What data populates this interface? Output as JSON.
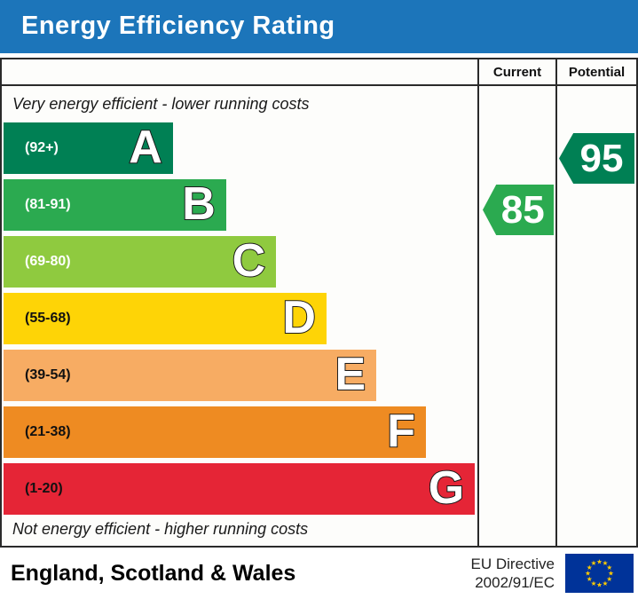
{
  "title": "Energy Efficiency Rating",
  "columns": {
    "current": "Current",
    "potential": "Potential"
  },
  "captions": {
    "top": "Very energy efficient - lower running costs",
    "bottom": "Not energy efficient - higher running costs"
  },
  "chart_data": {
    "type": "bar",
    "title": "Energy Efficiency Rating",
    "bands": [
      {
        "letter": "A",
        "range": "(92+)",
        "min": 92,
        "max": 100,
        "color": "#008054",
        "label_color": "#ffffff",
        "width_pct": 35.6
      },
      {
        "letter": "B",
        "range": "(81-91)",
        "min": 81,
        "max": 91,
        "color": "#2baa50",
        "label_color": "#ffffff",
        "width_pct": 46.8
      },
      {
        "letter": "C",
        "range": "(69-80)",
        "min": 69,
        "max": 80,
        "color": "#8fca3f",
        "label_color": "#ffffff",
        "width_pct": 57.3
      },
      {
        "letter": "D",
        "range": "(55-68)",
        "min": 55,
        "max": 68,
        "color": "#fed406",
        "label_color": "#111111",
        "width_pct": 67.9
      },
      {
        "letter": "E",
        "range": "(39-54)",
        "min": 39,
        "max": 54,
        "color": "#f7ac63",
        "label_color": "#111111",
        "width_pct": 78.4
      },
      {
        "letter": "F",
        "range": "(21-38)",
        "min": 21,
        "max": 38,
        "color": "#ee8b22",
        "label_color": "#111111",
        "width_pct": 88.8
      },
      {
        "letter": "G",
        "range": "(1-20)",
        "min": 1,
        "max": 20,
        "color": "#e52536",
        "label_color": "#111111",
        "width_pct": 99.1
      }
    ],
    "current": {
      "value": 85,
      "band": "B",
      "color": "#2baa50"
    },
    "potential": {
      "value": 95,
      "band": "A",
      "color": "#008054"
    }
  },
  "footer": {
    "region": "England, Scotland & Wales",
    "directive_line1": "EU Directive",
    "directive_line2": "2002/91/EC",
    "eu_flag": {
      "background": "#003399",
      "star_color": "#ffcc00"
    }
  }
}
